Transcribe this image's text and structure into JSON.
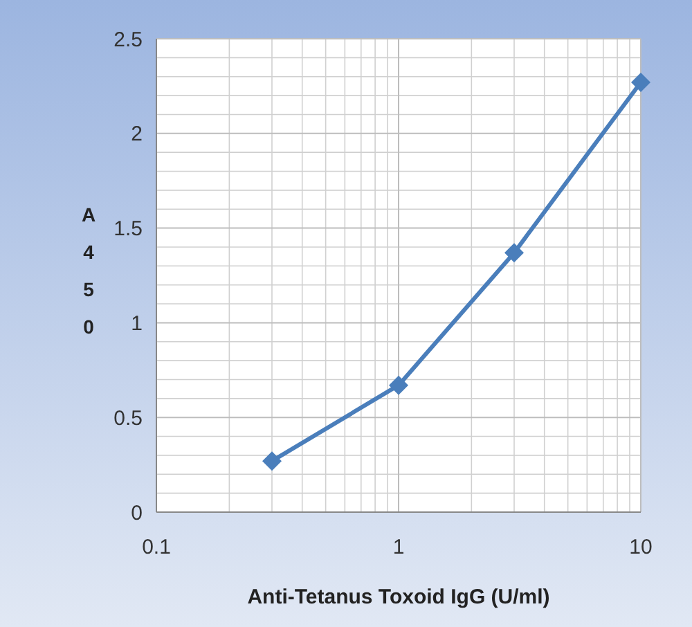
{
  "chart_data": {
    "type": "line",
    "xlabel": "Anti-Tetanus Toxoid IgG (U/ml)",
    "ylabel": "A450",
    "log": "x",
    "x": [
      0.3,
      1,
      3,
      10
    ],
    "series": [
      {
        "color": "#4a7ebb",
        "values": [
          0.27,
          0.67,
          1.37,
          2.27
        ]
      }
    ],
    "xlim": [
      0.1,
      10
    ],
    "xticks": [
      0.1,
      1,
      10
    ],
    "ylim": [
      0,
      2.5
    ],
    "yticks": [
      0,
      0.5,
      1,
      1.5,
      2,
      2.5
    ],
    "grid": true,
    "marker": "diamond",
    "line_style": "solid"
  }
}
